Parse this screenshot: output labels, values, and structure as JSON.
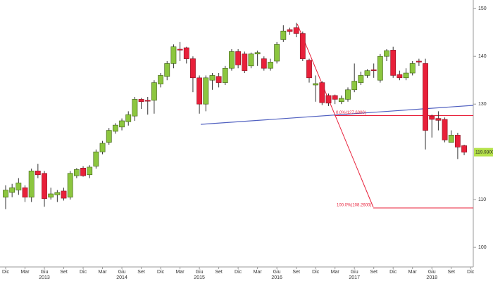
{
  "chart_data": {
    "type": "candlestick",
    "categories": [
      "Dic",
      null,
      null,
      "Mar",
      null,
      null,
      "Giu",
      null,
      null,
      "Set",
      null,
      null,
      "Dic",
      null,
      null,
      "Mar",
      null,
      null,
      "Giu",
      null,
      null,
      "Set",
      null,
      null,
      "Dic",
      null,
      null,
      "Mar",
      null,
      null,
      "Giu",
      null,
      null,
      "Set",
      null,
      null,
      "Dic",
      null,
      null,
      "Mar",
      null,
      null,
      "Giu",
      null,
      null,
      "Set",
      null,
      null,
      "Dic",
      null,
      null,
      "Mar",
      null,
      null,
      "Giu",
      null,
      null,
      "Set",
      null,
      null,
      "Dic",
      null,
      null,
      "Mar",
      null,
      null,
      "Giu",
      null,
      null,
      "Set",
      null,
      null,
      "Dic"
    ],
    "years": [
      null,
      null,
      null,
      null,
      null,
      null,
      "2013",
      null,
      null,
      null,
      null,
      null,
      null,
      null,
      null,
      null,
      null,
      null,
      "2014",
      null,
      null,
      null,
      null,
      null,
      null,
      null,
      null,
      null,
      null,
      null,
      "2015",
      null,
      null,
      null,
      null,
      null,
      null,
      null,
      null,
      null,
      null,
      null,
      "2016",
      null,
      null,
      null,
      null,
      null,
      null,
      null,
      null,
      null,
      null,
      null,
      "2017",
      null,
      null,
      null,
      null,
      null,
      null,
      null,
      null,
      null,
      null,
      null,
      "2018",
      null,
      null,
      null,
      null,
      null,
      null
    ],
    "open": [
      110.5,
      111.5,
      112,
      112.5,
      110.5,
      116,
      115.5,
      110.5,
      111,
      111.8,
      110.5,
      115,
      116.6,
      115.2,
      117,
      120,
      122,
      124.3,
      125.2,
      126.3,
      127.5,
      131,
      130.8,
      130.8,
      134.2,
      135.8,
      138.5,
      141.5,
      141.8,
      139.5,
      135.5,
      130,
      135,
      135.8,
      134.5,
      137.5,
      141,
      140.5,
      138,
      140.5,
      139.5,
      137.5,
      139,
      143.5,
      145.6,
      146,
      144.8,
      139.2,
      134,
      134.5,
      131.8,
      131.8,
      130.5,
      131,
      133,
      134.5,
      136,
      137.2,
      135,
      140,
      141.3,
      136.2,
      135.5,
      136.5,
      139,
      138.5,
      127.5,
      127,
      126.8,
      122,
      123.5,
      121.3,
      null
    ],
    "high": [
      113,
      113.3,
      114.5,
      113,
      116.5,
      117.5,
      116,
      112.5,
      112,
      112.5,
      116,
      116.6,
      117,
      117.2,
      120.5,
      122.3,
      125,
      126,
      127,
      128.5,
      131.5,
      131.3,
      131.5,
      135,
      136.5,
      139,
      142.5,
      143,
      142,
      140,
      136,
      136,
      136.5,
      136.5,
      138,
      141.5,
      141.5,
      141,
      140.8,
      141.2,
      140,
      139.5,
      143,
      146.5,
      146,
      147,
      145.2,
      139.5,
      136,
      134.8,
      132.2,
      132,
      131.8,
      133.5,
      138.5,
      136.8,
      137.3,
      138.5,
      140.5,
      141.5,
      142,
      137,
      137.5,
      139,
      139.5,
      139.5,
      127.8,
      128.5,
      127.2,
      124.5,
      124,
      121.5,
      null
    ],
    "low": [
      108,
      110.5,
      111,
      109.5,
      109.5,
      114.5,
      108.5,
      110,
      109.5,
      109.8,
      110,
      114.5,
      114.8,
      114.5,
      116.5,
      119.5,
      121.5,
      123.8,
      124.5,
      125.5,
      126.5,
      129,
      127.8,
      128,
      133.5,
      135,
      137.5,
      139,
      138.5,
      132.5,
      128,
      128.5,
      133,
      133.5,
      134,
      137,
      137.5,
      136.5,
      137.5,
      138,
      137,
      137,
      138.5,
      143,
      144.5,
      144,
      139,
      134.5,
      130.5,
      129.8,
      129.6,
      130,
      130,
      130.5,
      132.5,
      134,
      135.5,
      135.5,
      134.5,
      139,
      135.5,
      135,
      135,
      136,
      138,
      120.5,
      123,
      124.5,
      122,
      122,
      118.5,
      119.3,
      null
    ],
    "close": [
      112,
      112.5,
      113.5,
      110.5,
      116,
      115.2,
      110.2,
      111.2,
      111.5,
      110.3,
      115.5,
      116.3,
      115,
      116.8,
      120,
      121.8,
      124.5,
      125.6,
      126.5,
      127.8,
      131,
      130.5,
      130.6,
      134.5,
      136,
      138.5,
      142,
      141.3,
      139.5,
      135.5,
      130,
      135.5,
      136,
      134.5,
      137.5,
      141,
      138.2,
      137,
      140.5,
      140.8,
      137.5,
      138.8,
      142.5,
      145.3,
      145.2,
      144.8,
      139.5,
      135.5,
      134.3,
      130.3,
      130.2,
      131,
      131.2,
      133,
      134.8,
      136,
      137,
      137,
      140,
      141.2,
      136,
      135.5,
      136.5,
      138.5,
      138.8,
      124.5,
      126.8,
      126.6,
      122.5,
      123.5,
      121,
      119.93,
      null
    ],
    "up_color": "#8cc63f",
    "down_color": "#e8203a",
    "ylim": [
      95.9,
      151.8
    ],
    "yticks": [
      100,
      110,
      130,
      140,
      150
    ],
    "last_price": {
      "value": 119.93,
      "label": "119.9300"
    },
    "fib_levels": [
      {
        "value": 127.6,
        "label": "0.0%(127.6000)"
      },
      {
        "value": 108.26,
        "label": "100.0%(108.2600)"
      }
    ]
  }
}
